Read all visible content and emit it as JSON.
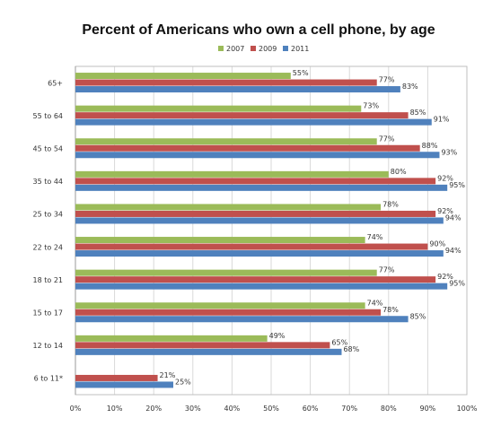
{
  "chart_data": {
    "type": "bar",
    "orientation": "horizontal",
    "title": "Percent of Americans who own a cell phone, by age",
    "xlabel": "",
    "ylabel": "",
    "xlim": [
      0,
      100
    ],
    "x_ticks": [
      "0%",
      "10%",
      "20%",
      "30%",
      "40%",
      "50%",
      "60%",
      "70%",
      "80%",
      "90%",
      "100%"
    ],
    "grid": true,
    "legend_position": "top",
    "categories": [
      "65+",
      "55 to 64",
      "45 to 54",
      "35 to 44",
      "25 to 34",
      "22 to 24",
      "18 to 21",
      "15 to 17",
      "12 to 14",
      "6 to 11*"
    ],
    "series": [
      {
        "name": "2007",
        "color": "#9bbb59",
        "values": [
          55,
          73,
          77,
          80,
          78,
          74,
          77,
          74,
          49,
          null
        ],
        "labels": [
          "55%",
          "73%",
          "77%",
          "80%",
          "78%",
          "74%",
          "77%",
          "74%",
          "49%",
          ""
        ]
      },
      {
        "name": "2009",
        "color": "#c0504d",
        "values": [
          77,
          85,
          88,
          92,
          92,
          90,
          92,
          78,
          65,
          21
        ],
        "labels": [
          "77%",
          "85%",
          "88%",
          "92%",
          "92%",
          "90%",
          "92%",
          "78%",
          "65%",
          "21%"
        ]
      },
      {
        "name": "2011",
        "color": "#4f81bd",
        "values": [
          83,
          91,
          93,
          95,
          94,
          94,
          95,
          85,
          68,
          25
        ],
        "labels": [
          "83%",
          "91%",
          "93%",
          "95%",
          "94%",
          "94%",
          "95%",
          "85%",
          "68%",
          "25%"
        ]
      }
    ]
  }
}
